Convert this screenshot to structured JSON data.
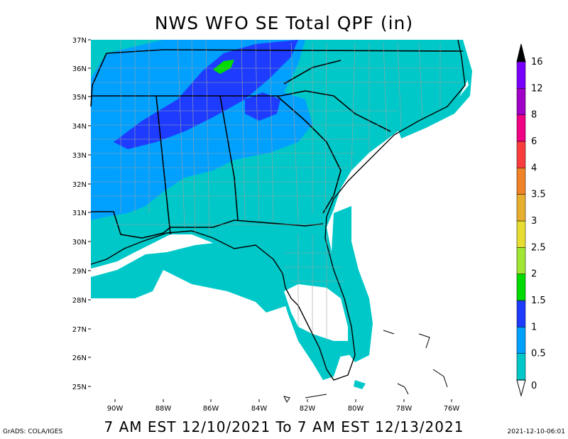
{
  "title": "NWS WFO SE Total QPF (in)",
  "subtitle": "7 AM EST 12/10/2021 To 7 AM EST 12/13/2021",
  "credit_left": "GrADS: COLA/IGES",
  "credit_right": "2021-12-10-06:01",
  "map": {
    "lat_labels": [
      "37N",
      "36N",
      "35N",
      "34N",
      "33N",
      "32N",
      "31N",
      "30N",
      "29N",
      "28N",
      "27N",
      "26N",
      "25N"
    ],
    "lon_labels": [
      "90W",
      "88W",
      "86W",
      "84W",
      "82W",
      "80W",
      "78W",
      "76W"
    ]
  },
  "colorbar": {
    "labels": [
      "0",
      "0.5",
      "1",
      "1.5",
      "2",
      "2.5",
      "3",
      "3.5",
      "4",
      "6",
      "8",
      "12",
      "16"
    ],
    "colors": [
      "#ffffff",
      "#00c8c8",
      "#00a0ff",
      "#1e3cff",
      "#00dc00",
      "#a0e632",
      "#e6dc32",
      "#e6af2d",
      "#f08228",
      "#fa3c3c",
      "#f00082",
      "#a000c8",
      "#7800ff",
      "#000000"
    ]
  }
}
